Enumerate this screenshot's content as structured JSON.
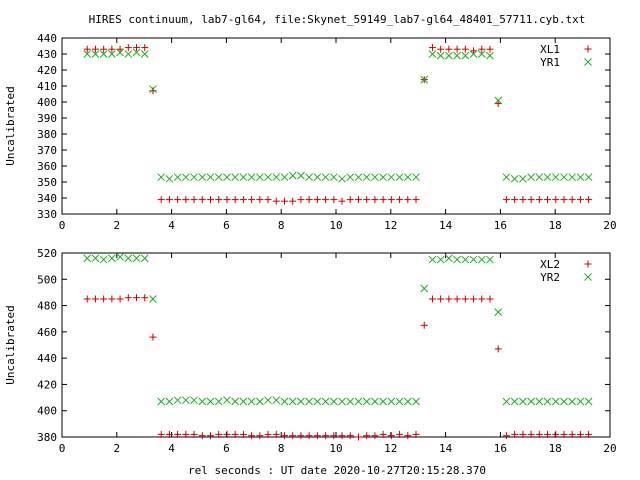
{
  "title": "HIRES continuum, lab7-gl64, file:Skynet_59149_lab7-gl64_48401_57711.cyb.txt",
  "xlabel": "rel seconds : UT date 2020-10-27T20:15:28.370",
  "colors": {
    "red": "#cc0000",
    "green": "#22aa22"
  },
  "chart_data": [
    {
      "type": "scatter",
      "ylabel": "Uncalibrated",
      "xlim": [
        0,
        20
      ],
      "ylim": [
        330,
        440
      ],
      "xticks": [
        0,
        2,
        4,
        6,
        8,
        10,
        12,
        14,
        16,
        18,
        20
      ],
      "yticks": [
        330,
        340,
        350,
        360,
        370,
        380,
        390,
        400,
        410,
        420,
        430,
        440
      ],
      "legend": "top-right",
      "series": [
        {
          "name": "XL1",
          "marker": "plus",
          "color": "#cc0000",
          "x": [
            0.92,
            1.22,
            1.52,
            1.82,
            2.12,
            2.42,
            2.72,
            3.02,
            3.32,
            3.62,
            3.92,
            4.22,
            4.52,
            4.82,
            5.12,
            5.42,
            5.72,
            6.02,
            6.32,
            6.62,
            6.92,
            7.22,
            7.52,
            7.82,
            8.12,
            8.42,
            8.72,
            9.02,
            9.32,
            9.62,
            9.92,
            10.22,
            10.52,
            10.82,
            11.12,
            11.42,
            11.72,
            12.02,
            12.32,
            12.62,
            12.92,
            13.22,
            13.52,
            13.82,
            14.12,
            14.42,
            14.72,
            15.02,
            15.32,
            15.62,
            15.92,
            16.22,
            16.52,
            16.82,
            17.12,
            17.42,
            17.72,
            18.02,
            18.32,
            18.62,
            18.92,
            19.22
          ],
          "y": [
            433,
            433,
            433,
            433,
            433,
            434,
            434,
            434,
            407,
            339,
            339,
            339,
            339,
            339,
            339,
            339,
            339,
            339,
            339,
            339,
            339,
            339,
            339,
            338,
            338,
            338,
            339,
            339,
            339,
            339,
            339,
            338,
            339,
            339,
            339,
            339,
            339,
            339,
            339,
            339,
            339,
            414,
            434,
            433,
            433,
            433,
            433,
            432,
            433,
            433,
            399,
            339,
            339,
            339,
            339,
            339,
            339,
            339,
            339,
            339,
            339,
            339
          ]
        },
        {
          "name": "YR1",
          "marker": "cross",
          "color": "#22aa22",
          "x": [
            0.92,
            1.22,
            1.52,
            1.82,
            2.12,
            2.42,
            2.72,
            3.02,
            3.32,
            3.62,
            3.92,
            4.22,
            4.52,
            4.82,
            5.12,
            5.42,
            5.72,
            6.02,
            6.32,
            6.62,
            6.92,
            7.22,
            7.52,
            7.82,
            8.12,
            8.42,
            8.72,
            9.02,
            9.32,
            9.62,
            9.92,
            10.22,
            10.52,
            10.82,
            11.12,
            11.42,
            11.72,
            12.02,
            12.32,
            12.62,
            12.92,
            13.22,
            13.52,
            13.82,
            14.12,
            14.42,
            14.72,
            15.02,
            15.32,
            15.62,
            15.92,
            16.22,
            16.52,
            16.82,
            17.12,
            17.42,
            17.72,
            18.02,
            18.32,
            18.62,
            18.92,
            19.22
          ],
          "y": [
            430,
            430,
            430,
            430,
            431,
            430,
            431,
            430,
            408,
            353,
            352,
            353,
            353,
            353,
            353,
            353,
            353,
            353,
            353,
            353,
            353,
            353,
            353,
            353,
            353,
            354,
            354,
            353,
            353,
            353,
            353,
            352,
            353,
            353,
            353,
            353,
            353,
            353,
            353,
            353,
            353,
            414,
            430,
            429,
            429,
            429,
            429,
            430,
            430,
            429,
            401,
            353,
            352,
            352,
            353,
            353,
            353,
            353,
            353,
            353,
            353,
            353
          ]
        }
      ]
    },
    {
      "type": "scatter",
      "ylabel": "Uncalibrated",
      "xlim": [
        0,
        20
      ],
      "ylim": [
        380,
        520
      ],
      "xticks": [
        0,
        2,
        4,
        6,
        8,
        10,
        12,
        14,
        16,
        18,
        20
      ],
      "yticks": [
        380,
        400,
        420,
        440,
        460,
        480,
        500,
        520
      ],
      "legend": "top-right",
      "series": [
        {
          "name": "XL2",
          "marker": "plus",
          "color": "#cc0000",
          "x": [
            0.92,
            1.22,
            1.52,
            1.82,
            2.12,
            2.42,
            2.72,
            3.02,
            3.32,
            3.62,
            3.92,
            4.22,
            4.52,
            4.82,
            5.12,
            5.42,
            5.72,
            6.02,
            6.32,
            6.62,
            6.92,
            7.22,
            7.52,
            7.82,
            8.12,
            8.42,
            8.72,
            9.02,
            9.32,
            9.62,
            9.92,
            10.22,
            10.52,
            10.82,
            11.12,
            11.42,
            11.72,
            12.02,
            12.32,
            12.62,
            12.92,
            13.22,
            13.52,
            13.82,
            14.12,
            14.42,
            14.72,
            15.02,
            15.32,
            15.62,
            15.92,
            16.22,
            16.52,
            16.82,
            17.12,
            17.42,
            17.72,
            18.02,
            18.32,
            18.62,
            18.92,
            19.22
          ],
          "y": [
            485,
            485,
            485,
            485,
            485,
            486,
            486,
            486,
            456,
            382,
            382,
            382,
            382,
            382,
            381,
            381,
            382,
            382,
            382,
            382,
            381,
            381,
            382,
            382,
            381,
            381,
            381,
            381,
            381,
            381,
            381,
            381,
            381,
            380,
            381,
            381,
            382,
            381,
            382,
            381,
            382,
            465,
            485,
            485,
            485,
            485,
            485,
            485,
            485,
            485,
            447,
            381,
            382,
            382,
            382,
            382,
            382,
            382,
            382,
            382,
            382,
            382
          ]
        },
        {
          "name": "YR2",
          "marker": "cross",
          "color": "#22aa22",
          "x": [
            0.92,
            1.22,
            1.52,
            1.82,
            2.12,
            2.42,
            2.72,
            3.02,
            3.32,
            3.62,
            3.92,
            4.22,
            4.52,
            4.82,
            5.12,
            5.42,
            5.72,
            6.02,
            6.32,
            6.62,
            6.92,
            7.22,
            7.52,
            7.82,
            8.12,
            8.42,
            8.72,
            9.02,
            9.32,
            9.62,
            9.92,
            10.22,
            10.52,
            10.82,
            11.12,
            11.42,
            11.72,
            12.02,
            12.32,
            12.62,
            12.92,
            13.22,
            13.52,
            13.82,
            14.12,
            14.42,
            14.72,
            15.02,
            15.32,
            15.62,
            15.92,
            16.22,
            16.52,
            16.82,
            17.12,
            17.42,
            17.72,
            18.02,
            18.32,
            18.62,
            18.92,
            19.22
          ],
          "y": [
            516,
            516,
            515,
            516,
            517,
            516,
            516,
            516,
            485,
            407,
            407,
            408,
            408,
            408,
            407,
            407,
            407,
            408,
            407,
            407,
            407,
            407,
            408,
            408,
            407,
            407,
            407,
            407,
            407,
            407,
            407,
            407,
            407,
            407,
            407,
            407,
            407,
            407,
            407,
            407,
            407,
            493,
            515,
            515,
            516,
            515,
            515,
            515,
            515,
            515,
            475,
            407,
            407,
            407,
            407,
            407,
            407,
            407,
            407,
            407,
            407,
            407
          ]
        }
      ]
    }
  ]
}
